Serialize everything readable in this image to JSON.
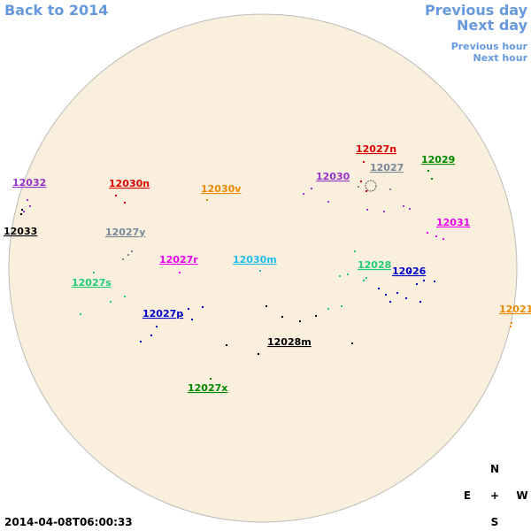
{
  "navigation": {
    "back": "Back to 2014",
    "previous_day": "Previous day",
    "next_day": "Next day",
    "previous_hour": "Previous hour",
    "next_hour": "Next hour"
  },
  "regions": [
    {
      "label": "12032",
      "color": "#9933cc"
    },
    {
      "label": "12033",
      "color": "#000000"
    },
    {
      "label": "12030n",
      "color": "#dd0000"
    },
    {
      "label": "12030v",
      "color": "#ee8800"
    },
    {
      "label": "12027y",
      "color": "#778899"
    },
    {
      "label": "12027r",
      "color": "#ee00ee"
    },
    {
      "label": "12030m",
      "color": "#22bbee"
    },
    {
      "label": "12027s",
      "color": "#22cc77"
    },
    {
      "label": "12027p",
      "color": "#0000cc"
    },
    {
      "label": "12028m",
      "color": "#000000"
    },
    {
      "label": "12027x",
      "color": "#008800"
    },
    {
      "label": "12027n",
      "color": "#dd0000"
    },
    {
      "label": "12027",
      "color": "#778899"
    },
    {
      "label": "12029",
      "color": "#008800"
    },
    {
      "label": "12030",
      "color": "#9933cc"
    },
    {
      "label": "12031",
      "color": "#ee00ee"
    },
    {
      "label": "12028",
      "color": "#22cc77"
    },
    {
      "label": "12026",
      "color": "#0000cc"
    },
    {
      "label": "12021",
      "color": "#ee8800"
    }
  ],
  "compass": {
    "north": "N",
    "east": "E",
    "center": "+",
    "west": "W",
    "south": "S"
  },
  "timestamp": "2014-04-08T06:00:33"
}
